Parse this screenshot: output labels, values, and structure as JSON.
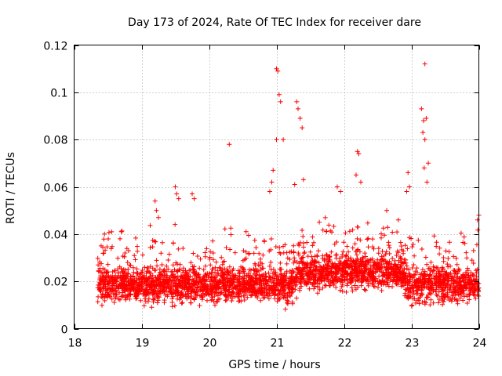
{
  "chart_data": {
    "type": "scatter",
    "title": "Day 173 of 2024, Rate Of TEC Index for receiver dare",
    "xlabel": "GPS time / hours",
    "ylabel": "ROTI / TECUs",
    "xlim": [
      18,
      24
    ],
    "ylim": [
      0,
      0.12
    ],
    "x_ticks": [
      "18",
      "19",
      "20",
      "21",
      "22",
      "23",
      "24"
    ],
    "y_ticks": [
      "0",
      "0.02",
      "0.04",
      "0.06",
      "0.08",
      "0.1",
      "0.12"
    ],
    "grid": true,
    "marker": "+",
    "series": [
      {
        "name": "ROTI",
        "color": "#ff0000",
        "description": "dense band of points ~0.01-0.03 TECU/s from 18.35 h to 24 h with spikes",
        "spikes": [
          {
            "x": 18.4,
            "y": 0.035
          },
          {
            "x": 18.45,
            "y": 0.04
          },
          {
            "x": 18.7,
            "y": 0.041
          },
          {
            "x": 18.68,
            "y": 0.038
          },
          {
            "x": 19.2,
            "y": 0.054
          },
          {
            "x": 19.22,
            "y": 0.05
          },
          {
            "x": 19.25,
            "y": 0.047
          },
          {
            "x": 19.5,
            "y": 0.06
          },
          {
            "x": 19.52,
            "y": 0.057
          },
          {
            "x": 19.55,
            "y": 0.055
          },
          {
            "x": 19.75,
            "y": 0.057
          },
          {
            "x": 19.78,
            "y": 0.055
          },
          {
            "x": 20.3,
            "y": 0.078
          },
          {
            "x": 20.9,
            "y": 0.058
          },
          {
            "x": 20.93,
            "y": 0.062
          },
          {
            "x": 20.95,
            "y": 0.067
          },
          {
            "x": 21.0,
            "y": 0.11
          },
          {
            "x": 21.02,
            "y": 0.109
          },
          {
            "x": 21.04,
            "y": 0.099
          },
          {
            "x": 21.06,
            "y": 0.096
          },
          {
            "x": 21.0,
            "y": 0.08
          },
          {
            "x": 21.1,
            "y": 0.08
          },
          {
            "x": 21.3,
            "y": 0.096
          },
          {
            "x": 21.32,
            "y": 0.093
          },
          {
            "x": 21.35,
            "y": 0.089
          },
          {
            "x": 21.38,
            "y": 0.085
          },
          {
            "x": 21.4,
            "y": 0.063
          },
          {
            "x": 21.27,
            "y": 0.061
          },
          {
            "x": 21.9,
            "y": 0.06
          },
          {
            "x": 21.95,
            "y": 0.058
          },
          {
            "x": 22.2,
            "y": 0.075
          },
          {
            "x": 22.22,
            "y": 0.074
          },
          {
            "x": 22.18,
            "y": 0.065
          },
          {
            "x": 22.25,
            "y": 0.062
          },
          {
            "x": 22.95,
            "y": 0.066
          },
          {
            "x": 22.97,
            "y": 0.06
          },
          {
            "x": 22.93,
            "y": 0.058
          },
          {
            "x": 23.15,
            "y": 0.093
          },
          {
            "x": 23.2,
            "y": 0.112
          },
          {
            "x": 23.18,
            "y": 0.088
          },
          {
            "x": 23.22,
            "y": 0.089
          },
          {
            "x": 23.17,
            "y": 0.083
          },
          {
            "x": 23.2,
            "y": 0.08
          },
          {
            "x": 23.25,
            "y": 0.07
          },
          {
            "x": 23.19,
            "y": 0.068
          },
          {
            "x": 23.23,
            "y": 0.062
          },
          {
            "x": 24.0,
            "y": 0.048
          },
          {
            "x": 23.98,
            "y": 0.046
          }
        ]
      }
    ]
  }
}
